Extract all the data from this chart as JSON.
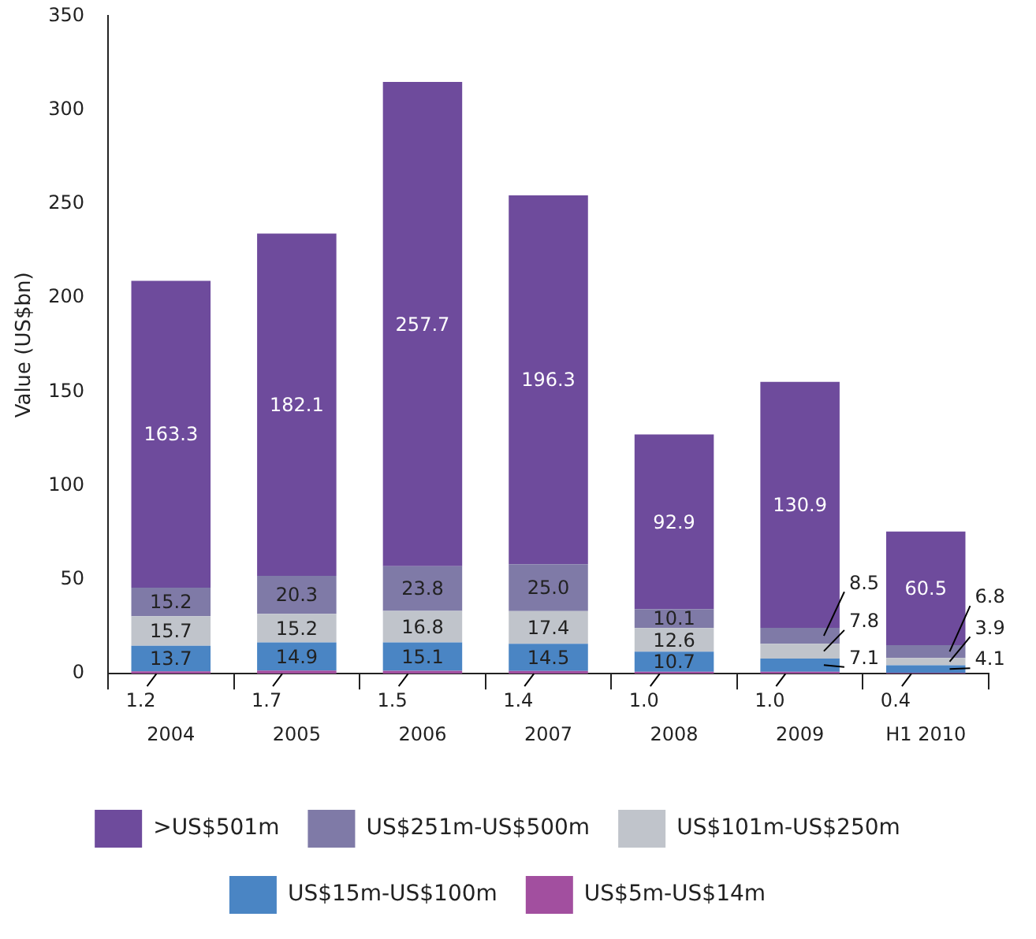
{
  "chart_data": {
    "type": "bar",
    "stacked": true,
    "ylabel": "Value (US$bn)",
    "categories": [
      "2004",
      "2005",
      "2006",
      "2007",
      "2008",
      "2009",
      "H1 2010"
    ],
    "series": [
      {
        "name": "US$5m-US$14m",
        "color": "#a24f9f",
        "values": [
          1.2,
          1.7,
          1.5,
          1.4,
          1.0,
          1.0,
          0.4
        ],
        "value_labels": [
          "1.2",
          "1.7",
          "1.5",
          "1.4",
          "1.0",
          "1.0",
          "0.4"
        ]
      },
      {
        "name": "US$15m-US$100m",
        "color": "#4a85c4",
        "values": [
          13.7,
          14.9,
          15.1,
          14.5,
          10.7,
          7.1,
          4.1
        ],
        "value_labels": [
          "13.7",
          "14.9",
          "15.1",
          "14.5",
          "10.7",
          "7.1",
          "4.1"
        ]
      },
      {
        "name": "US$101m-US$250m",
        "color": "#c0c4cb",
        "values": [
          15.7,
          15.2,
          16.8,
          17.4,
          12.6,
          7.8,
          3.9
        ],
        "value_labels": [
          "15.7",
          "15.2",
          "16.8",
          "17.4",
          "12.6",
          "7.8",
          "3.9"
        ]
      },
      {
        "name": "US$251m-US$500m",
        "color": "#7f7aa7",
        "values": [
          15.2,
          20.3,
          23.8,
          25.0,
          10.1,
          8.5,
          6.8
        ],
        "value_labels": [
          "15.2",
          "20.3",
          "23.8",
          "25.0",
          "10.1",
          "8.5",
          "6.8"
        ]
      },
      {
        "name": ">US$501m",
        "color": "#6e4b9c",
        "values": [
          163.3,
          182.1,
          257.7,
          196.3,
          92.9,
          130.9,
          60.5
        ],
        "value_labels": [
          "163.3",
          "182.1",
          "257.7",
          "196.3",
          "92.9",
          "130.9",
          "60.5"
        ]
      }
    ],
    "ylim": [
      0,
      350
    ],
    "yticks": [
      0,
      50,
      100,
      150,
      200,
      250,
      300,
      350
    ],
    "grid": false,
    "legend": "bottom"
  }
}
